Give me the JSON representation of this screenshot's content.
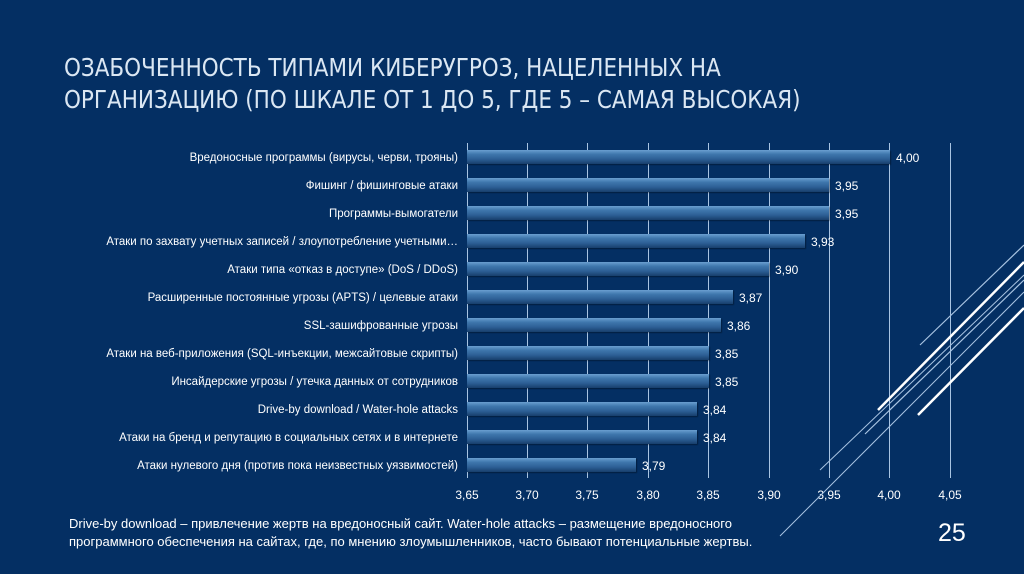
{
  "slide": {
    "title_lines": [
      "ОЗАБОЧЕННОСТЬ ТИПАМИ КИБЕРУГРОЗ, НАЦЕЛЕННЫХ НА",
      "ОРГАНИЗАЦИЮ (ПО ШКАЛЕ ОТ 1 ДО 5, ГДЕ 5 – САМАЯ ВЫСОКАЯ)"
    ],
    "note_lines": [
      "Drive-by download – привлечение жертв на вредоносный сайт. Water-hole attacks – размещение вредоносного",
      "программного обеспечения на сайтах, где, по мнению злоумышленников, часто бывают потенциальные жертвы."
    ],
    "page_number": "25",
    "colors": {
      "background": "#042f63",
      "bar": "#2d5f95",
      "gridline": "#a9c4e2",
      "text": "#ffffff"
    }
  },
  "chart_data": {
    "type": "bar",
    "orientation": "horizontal",
    "title": "Озабоченность типами киберугроз, нацеленных на организацию (по шкале от 1 до 5, где 5 – самая высокая)",
    "categories": [
      "Вредоносные программы (вирусы, черви, трояны)",
      "Фишинг / фишинговые атаки",
      "Программы-вымогатели",
      "Атаки по захвату учетных записей / злоупотребление учетными…",
      "Атаки типа «отказ в доступе» (DoS / DDoS)",
      "Расширенные постоянные угрозы (APTS) / целевые атаки",
      "SSL-зашифрованные угрозы",
      "Атаки на веб-приложения (SQL-инъекции, межсайтовые скрипты)",
      "Инсайдерские угрозы / утечка данных от сотрудников",
      "Drive-by download / Water-hole attacks",
      "Атаки на бренд и репутацию в социальных сетях и в интернете",
      "Атаки нулевого дня (против пока неизвестных уязвимостей)"
    ],
    "values": [
      4.0,
      3.95,
      3.95,
      3.93,
      3.9,
      3.87,
      3.86,
      3.85,
      3.85,
      3.84,
      3.84,
      3.79
    ],
    "value_labels": [
      "4,00",
      "3,95",
      "3,95",
      "3,93",
      "3,90",
      "3,87",
      "3,86",
      "3,85",
      "3,85",
      "3,84",
      "3,84",
      "3,79"
    ],
    "x_ticks": [
      "3,65",
      "3,70",
      "3,75",
      "3,80",
      "3,85",
      "3,90",
      "3,95",
      "4,00",
      "4,05"
    ],
    "xlim": [
      3.65,
      4.05
    ],
    "xlabel": "",
    "ylabel": "",
    "grid": "vertical",
    "legend": "none"
  }
}
